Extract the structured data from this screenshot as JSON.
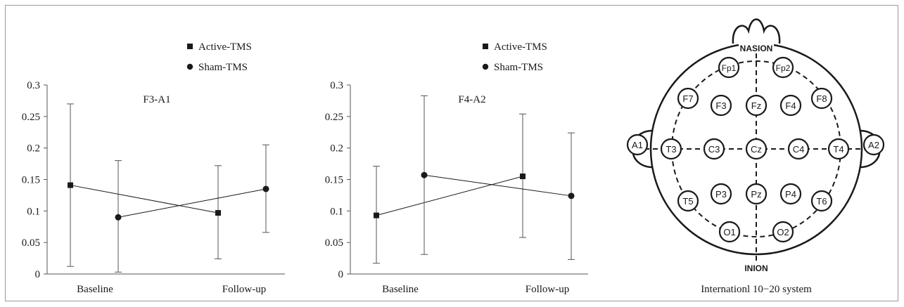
{
  "chart_data": [
    {
      "type": "line",
      "title": "F3-A1",
      "categories": [
        "Baseline",
        "Follow-up"
      ],
      "ylim": [
        0,
        0.3
      ],
      "yticks": [
        "0",
        "0.05",
        "0.1",
        "0.15",
        "0.2",
        "0.25",
        "0.3"
      ],
      "legend": {
        "placement": "top-right",
        "entries": [
          {
            "label": "Active-TMS",
            "marker": "square"
          },
          {
            "label": "Sham-TMS",
            "marker": "circle"
          }
        ]
      },
      "series": [
        {
          "name": "Active-TMS",
          "marker": "square",
          "values": [
            0.141,
            0.097
          ],
          "error_low": [
            0.012,
            0.024
          ],
          "error_high": [
            0.27,
            0.172
          ]
        },
        {
          "name": "Sham-TMS",
          "marker": "circle",
          "values": [
            0.09,
            0.135
          ],
          "error_low": [
            0.003,
            0.066
          ],
          "error_high": [
            0.18,
            0.205
          ]
        }
      ]
    },
    {
      "type": "line",
      "title": "F4-A2",
      "categories": [
        "Baseline",
        "Follow-up"
      ],
      "ylim": [
        0,
        0.3
      ],
      "yticks": [
        "0",
        "0.05",
        "0.1",
        "0.15",
        "0.2",
        "0.25",
        "0.3"
      ],
      "legend": {
        "placement": "top-right",
        "entries": [
          {
            "label": "Active-TMS",
            "marker": "square"
          },
          {
            "label": "Sham-TMS",
            "marker": "circle"
          }
        ]
      },
      "series": [
        {
          "name": "Active-TMS",
          "marker": "square",
          "values": [
            0.093,
            0.155
          ],
          "error_low": [
            0.017,
            0.058
          ],
          "error_high": [
            0.171,
            0.254
          ]
        },
        {
          "name": "Sham-TMS",
          "marker": "circle",
          "values": [
            0.157,
            0.124
          ],
          "error_low": [
            0.031,
            0.023
          ],
          "error_high": [
            0.283,
            0.224
          ]
        }
      ]
    }
  ],
  "diagram": {
    "top_label": "NASION",
    "bottom_label": "INION",
    "caption": "Internationl 10−20 system",
    "electrodes": [
      "Fp1",
      "Fp2",
      "F7",
      "F3",
      "Fz",
      "F4",
      "F8",
      "A1",
      "T3",
      "C3",
      "Cz",
      "C4",
      "T4",
      "A2",
      "T5",
      "P3",
      "Pz",
      "P4",
      "T6",
      "O1",
      "O2"
    ]
  },
  "colors": {
    "ink": "#1a1a1a",
    "axis": "#555555",
    "frame": "#9a9a9a"
  }
}
